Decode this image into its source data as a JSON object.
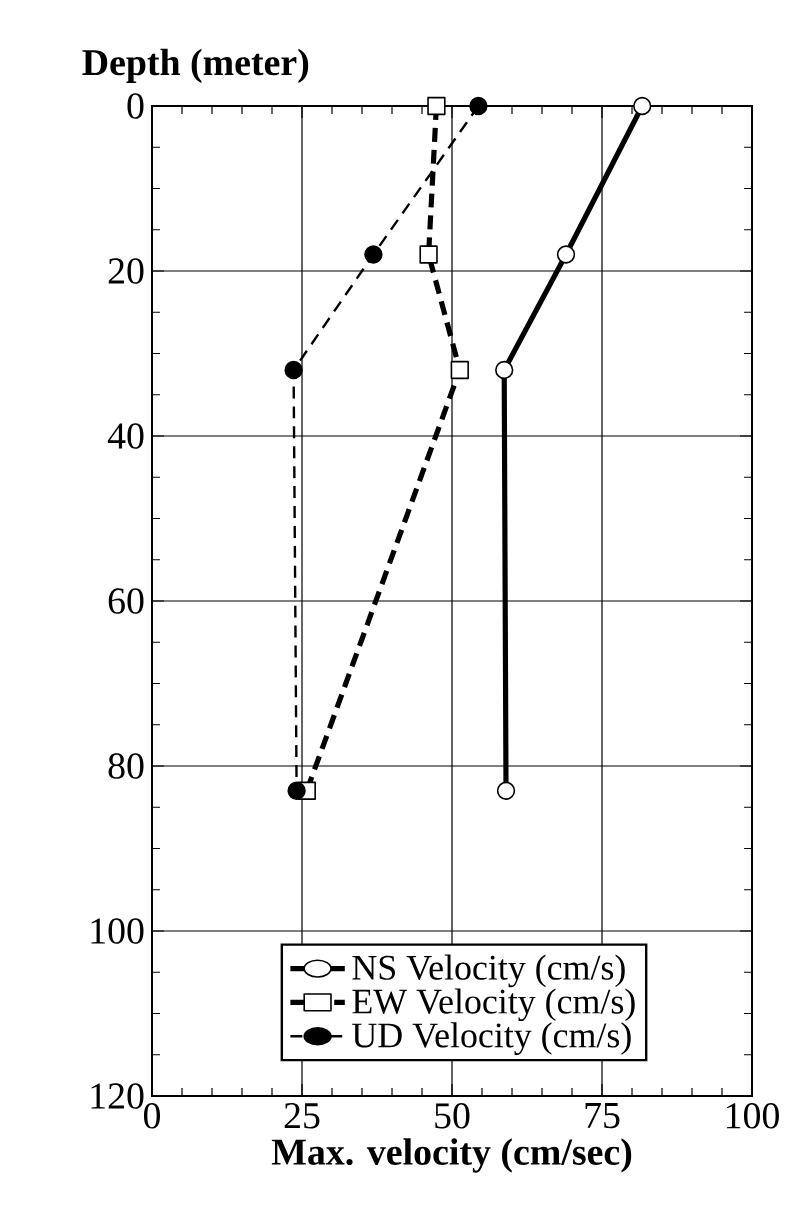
{
  "chart_data": {
    "type": "line",
    "xlabel": "Max. velocity (cm/sec)",
    "ylabel": "Depth (meter)",
    "xlim": [
      0,
      100
    ],
    "xticks": [
      0,
      25,
      50,
      75,
      100
    ],
    "ylim": [
      120,
      0
    ],
    "yticks": [
      0,
      20,
      40,
      60,
      80,
      100,
      120
    ],
    "grid": true,
    "legend": "bottom",
    "series": [
      {
        "name": "NS Velocity (cm/s)",
        "color": "#000000",
        "marker": "circle",
        "line_style": "solid",
        "x": [
          81.7,
          69,
          58.7,
          59
        ],
        "values": [
          0,
          18,
          32,
          83
        ]
      },
      {
        "name": "EW Velocity (cm/s)",
        "color": "#000000",
        "marker": "square",
        "line_style": "dashed",
        "x": [
          47.4,
          46.1,
          51.3,
          25.8
        ],
        "values": [
          0,
          18,
          32,
          83
        ]
      },
      {
        "name": "UD Velocity (cm/s)",
        "color": "#000000",
        "marker": "circle",
        "line_style": "dashed",
        "x": [
          54.4,
          36.9,
          23.6,
          24.1
        ],
        "values": [
          0,
          18,
          32,
          83
        ]
      }
    ]
  }
}
